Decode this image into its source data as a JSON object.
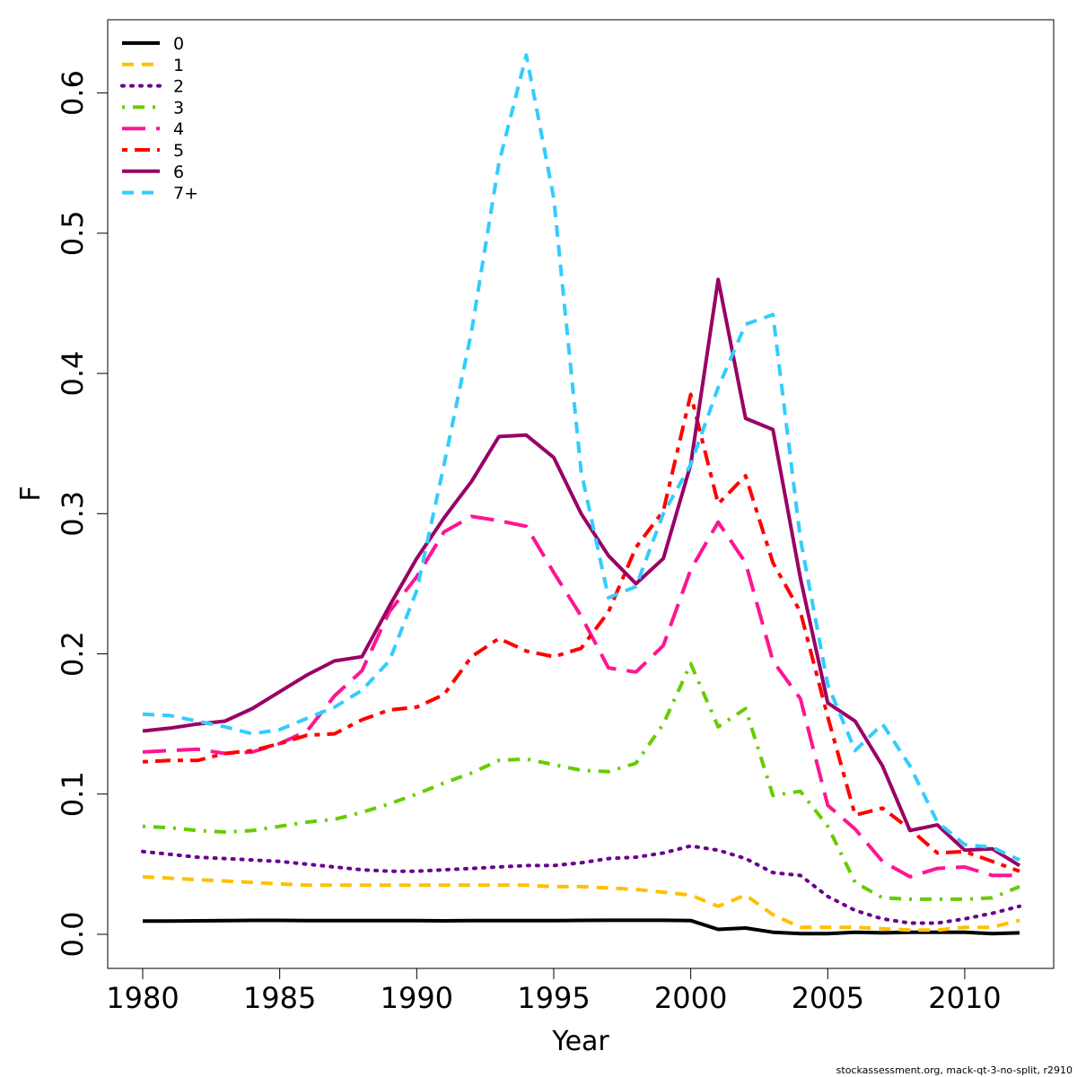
{
  "chart_data": {
    "type": "line",
    "title": "",
    "xlabel": "Year",
    "ylabel": "F",
    "xlim": [
      1980,
      2012
    ],
    "ylim": [
      0.0,
      0.63
    ],
    "x_ticks": [
      "1980",
      "1985",
      "1990",
      "1995",
      "2000",
      "2005",
      "2010"
    ],
    "y_ticks": [
      "0.0",
      "0.1",
      "0.2",
      "0.3",
      "0.4",
      "0.5",
      "0.6"
    ],
    "legend_position": "top-left",
    "footnote": "stockassessment.org, mack-qt-3-no-split, r2910",
    "x": [
      1980,
      1981,
      1982,
      1983,
      1984,
      1985,
      1986,
      1987,
      1988,
      1989,
      1990,
      1991,
      1992,
      1993,
      1994,
      1995,
      1996,
      1997,
      1998,
      1999,
      2000,
      2001,
      2002,
      2003,
      2004,
      2005,
      2006,
      2007,
      2008,
      2009,
      2010,
      2011,
      2012
    ],
    "series": [
      {
        "name": "0",
        "color": "#000000",
        "dash": "solid",
        "values": [
          0.0095,
          0.0095,
          0.0096,
          0.0097,
          0.0099,
          0.0099,
          0.0098,
          0.0097,
          0.0098,
          0.0098,
          0.0097,
          0.0096,
          0.0097,
          0.0097,
          0.0098,
          0.0098,
          0.0099,
          0.01,
          0.01,
          0.01,
          0.0098,
          0.0035,
          0.0045,
          0.0015,
          0.0005,
          0.0005,
          0.0015,
          0.001,
          0.0015,
          0.0015,
          0.0015,
          0.0005,
          0.001
        ]
      },
      {
        "name": "1",
        "color": "#FFC000",
        "dash": "dash",
        "values": [
          0.041,
          0.04,
          0.039,
          0.038,
          0.037,
          0.036,
          0.035,
          0.035,
          0.035,
          0.035,
          0.035,
          0.035,
          0.035,
          0.035,
          0.035,
          0.034,
          0.034,
          0.033,
          0.032,
          0.03,
          0.028,
          0.02,
          0.028,
          0.014,
          0.005,
          0.005,
          0.005,
          0.004,
          0.003,
          0.003,
          0.005,
          0.005,
          0.01
        ]
      },
      {
        "name": "2",
        "color": "#6A008F",
        "dash": "dot",
        "values": [
          0.059,
          0.057,
          0.055,
          0.054,
          0.053,
          0.052,
          0.05,
          0.048,
          0.046,
          0.045,
          0.045,
          0.046,
          0.047,
          0.048,
          0.049,
          0.049,
          0.051,
          0.054,
          0.055,
          0.058,
          0.063,
          0.06,
          0.054,
          0.044,
          0.042,
          0.027,
          0.017,
          0.011,
          0.008,
          0.008,
          0.011,
          0.015,
          0.02
        ]
      },
      {
        "name": "3",
        "color": "#66CC00",
        "dash": "dashdot",
        "values": [
          0.077,
          0.076,
          0.074,
          0.073,
          0.074,
          0.077,
          0.08,
          0.082,
          0.087,
          0.093,
          0.1,
          0.108,
          0.115,
          0.124,
          0.125,
          0.121,
          0.117,
          0.116,
          0.122,
          0.15,
          0.193,
          0.148,
          0.161,
          0.099,
          0.102,
          0.077,
          0.037,
          0.026,
          0.025,
          0.025,
          0.025,
          0.026,
          0.034
        ]
      },
      {
        "name": "4",
        "color": "#FF1493",
        "dash": "longdash",
        "values": [
          0.13,
          0.131,
          0.132,
          0.129,
          0.13,
          0.136,
          0.145,
          0.17,
          0.188,
          0.23,
          0.255,
          0.287,
          0.298,
          0.295,
          0.291,
          0.258,
          0.227,
          0.19,
          0.187,
          0.206,
          0.26,
          0.294,
          0.265,
          0.195,
          0.168,
          0.092,
          0.075,
          0.052,
          0.041,
          0.047,
          0.048,
          0.042,
          0.042
        ]
      },
      {
        "name": "5",
        "color": "#FF0000",
        "dash": "twodash",
        "values": [
          0.123,
          0.124,
          0.124,
          0.129,
          0.131,
          0.136,
          0.142,
          0.143,
          0.153,
          0.16,
          0.162,
          0.171,
          0.198,
          0.211,
          0.202,
          0.198,
          0.204,
          0.23,
          0.276,
          0.302,
          0.385,
          0.307,
          0.327,
          0.265,
          0.23,
          0.155,
          0.085,
          0.09,
          0.075,
          0.058,
          0.059,
          0.052,
          0.045
        ]
      },
      {
        "name": "6",
        "color": "#990066",
        "dash": "solid",
        "values": [
          0.145,
          0.147,
          0.15,
          0.152,
          0.161,
          0.173,
          0.185,
          0.195,
          0.198,
          0.234,
          0.268,
          0.297,
          0.323,
          0.355,
          0.356,
          0.34,
          0.3,
          0.27,
          0.25,
          0.268,
          0.335,
          0.467,
          0.368,
          0.36,
          0.254,
          0.165,
          0.152,
          0.12,
          0.074,
          0.078,
          0.06,
          0.061,
          0.049
        ]
      },
      {
        "name": "7+",
        "color": "#33CCFF",
        "dash": "dash",
        "values": [
          0.157,
          0.156,
          0.152,
          0.148,
          0.143,
          0.146,
          0.154,
          0.162,
          0.174,
          0.195,
          0.245,
          0.335,
          0.43,
          0.55,
          0.627,
          0.525,
          0.33,
          0.24,
          0.248,
          0.3,
          0.335,
          0.39,
          0.435,
          0.442,
          0.282,
          0.178,
          0.131,
          0.15,
          0.12,
          0.08,
          0.064,
          0.062,
          0.053
        ]
      }
    ]
  }
}
